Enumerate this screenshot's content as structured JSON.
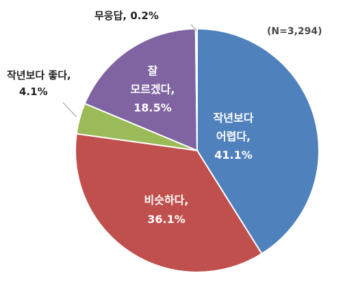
{
  "chart_data": {
    "type": "pie",
    "sample_note": "(N=3,294)",
    "slices": [
      {
        "label_lines": [
          "작년보다",
          "어렵다,",
          "41.1%"
        ],
        "value": 41.1,
        "color": "#4f81bd"
      },
      {
        "label_lines": [
          "비슷하다,",
          "36.1%"
        ],
        "value": 36.1,
        "color": "#c0504d"
      },
      {
        "label_lines": [
          "작년보다 좋다,",
          "4.1%"
        ],
        "value": 4.1,
        "color": "#9bbb59"
      },
      {
        "label_lines": [
          "잘",
          "모르겠다,",
          "18.5%"
        ],
        "value": 18.5,
        "color": "#8064a2"
      },
      {
        "label_lines": [
          "무응답,",
          "0.2%"
        ],
        "value": 0.2,
        "color": "#4bacc6"
      }
    ],
    "start_angle_deg": 0,
    "direction": "clockwise"
  }
}
